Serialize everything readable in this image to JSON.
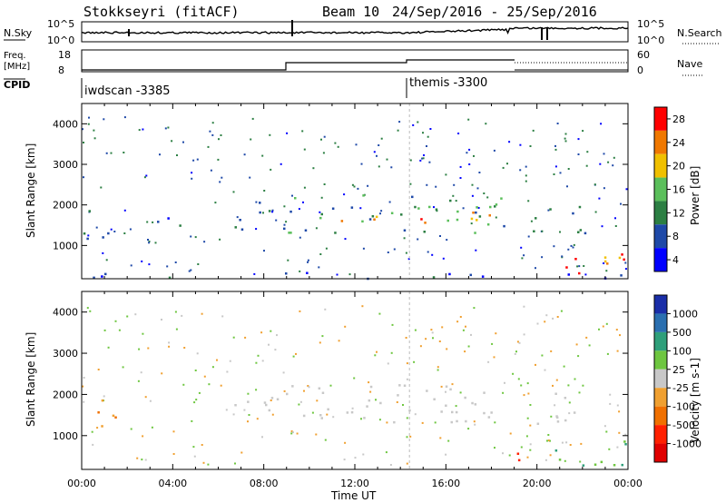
{
  "header": {
    "station": "Stokkseyri (fitACF)",
    "beam": "Beam 10",
    "date_range": "24/Sep/2016 - 25/Sep/2016"
  },
  "strips": {
    "nsky_label": "N.Sky",
    "nsky_ticks": [
      "10^5",
      "10^0"
    ],
    "nsearch_label": "N.Search",
    "nsearch_ticks": [
      "10^5",
      "10^0"
    ],
    "freq_label_line1": "Freq.",
    "freq_label_line2": "[MHz]",
    "freq_ticks": [
      "18",
      "8"
    ],
    "nave_label": "Nave",
    "nave_ticks": [
      "60",
      "0"
    ],
    "cpid_label": "CPID",
    "cpid_segments": [
      {
        "label": "iwdscan -3385",
        "start_hour": 0,
        "end_hour": 14.4
      },
      {
        "label": "themis -3300",
        "start_hour": 14.4,
        "end_hour": 24
      }
    ]
  },
  "chart_data": [
    {
      "type": "heatmap",
      "name": "power",
      "xlabel": "",
      "ylabel": "Slant Range [km]",
      "xlim": [
        0,
        24
      ],
      "ylim": [
        180,
        4500
      ],
      "yticks": [
        1000,
        2000,
        3000,
        4000
      ],
      "colorbar": {
        "label": "Power [dB]",
        "ticks": [
          4,
          8,
          12,
          16,
          20,
          24,
          28
        ],
        "colors": [
          "#0000ff",
          "#1e49a8",
          "#2c7f43",
          "#5bbf5b",
          "#f0c000",
          "#f07800",
          "#ff0000"
        ]
      },
      "regions": [
        {
          "t0": 0.0,
          "t1": 1.6,
          "r0": 1100,
          "r1": 1900,
          "level": 10
        },
        {
          "t0": 3.3,
          "t1": 4.8,
          "r0": 1500,
          "r1": 2000,
          "level": 6
        },
        {
          "t0": 6.5,
          "t1": 9.0,
          "r0": 1400,
          "r1": 2100,
          "level": 10
        },
        {
          "t0": 9.0,
          "t1": 18.7,
          "r0": 1300,
          "r1": 2300,
          "level": 14
        },
        {
          "t0": 11.0,
          "t1": 18.5,
          "r0": 1550,
          "r1": 1850,
          "level": 22
        },
        {
          "t0": 19.6,
          "t1": 22.2,
          "r0": 1300,
          "r1": 2100,
          "level": 12
        },
        {
          "t0": 20.5,
          "t1": 24.0,
          "r0": 250,
          "r1": 900,
          "level": 24
        },
        {
          "t0": 0.0,
          "t1": 24.0,
          "r0": 200,
          "r1": 350,
          "level": 8
        }
      ]
    },
    {
      "type": "heatmap",
      "name": "velocity",
      "xlabel": "Time UT",
      "ylabel": "Slant Range [km]",
      "xlim": [
        0,
        24
      ],
      "ylim": [
        180,
        4500
      ],
      "yticks": [
        1000,
        2000,
        3000,
        4000
      ],
      "xticks": [
        "00:00",
        "04:00",
        "08:00",
        "12:00",
        "16:00",
        "20:00",
        "00:00"
      ],
      "colorbar": {
        "label": "Velocity [m s-1]",
        "ticks": [
          1000,
          500,
          100,
          25,
          -25,
          -100,
          -500,
          -1000
        ],
        "colors": [
          "#1a2ea8",
          "#2a6fb0",
          "#2e9f7a",
          "#6ec640",
          "#c8c8c8",
          "#f0a030",
          "#f07000",
          "#ff2000",
          "#e00000"
        ]
      },
      "regions": [
        {
          "t0": 0.0,
          "t1": 1.6,
          "r0": 1100,
          "r1": 1900,
          "level": -100
        },
        {
          "t0": 6.5,
          "t1": 9.0,
          "r0": 1300,
          "r1": 2100,
          "level": 10
        },
        {
          "t0": 9.0,
          "t1": 18.7,
          "r0": 1300,
          "r1": 2300,
          "level": 0
        },
        {
          "t0": 19.6,
          "t1": 22.2,
          "r0": 1300,
          "r1": 2100,
          "level": 0
        },
        {
          "t0": 20.5,
          "t1": 24.0,
          "r0": 250,
          "r1": 900,
          "level": 100
        },
        {
          "t0": 19.0,
          "t1": 20.5,
          "r0": 350,
          "r1": 700,
          "level": -500
        }
      ]
    }
  ]
}
